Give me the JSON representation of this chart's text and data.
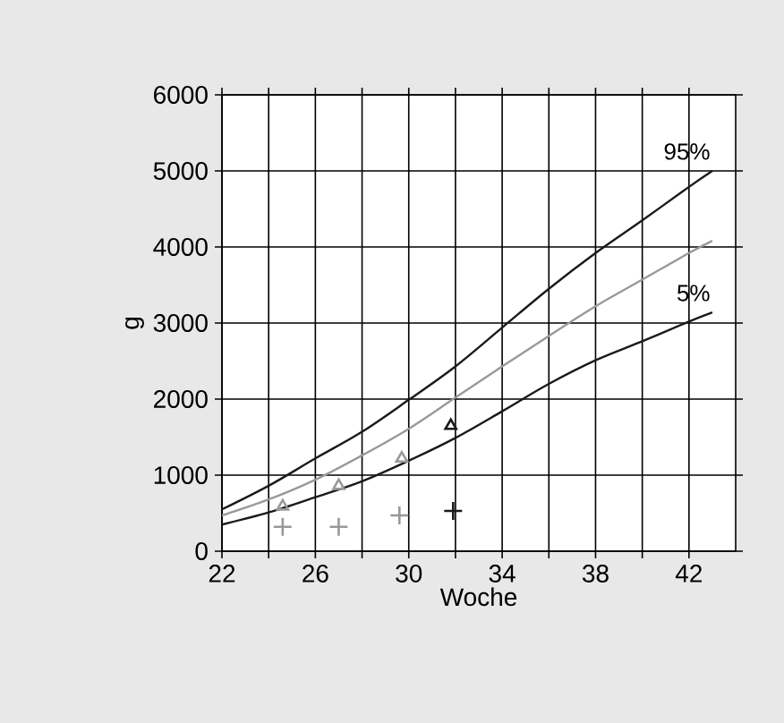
{
  "chart_data": {
    "type": "line",
    "xlabel": "Woche",
    "ylabel": "g",
    "xlim": [
      22,
      44
    ],
    "ylim": [
      0,
      6000
    ],
    "xticks": [
      22,
      {
        "value": 24,
        "label": null
      },
      26,
      {
        "value": 28,
        "label": null
      },
      30,
      {
        "value": 32,
        "label": null
      },
      34,
      {
        "value": 36,
        "label": null
      },
      38,
      {
        "value": 40,
        "label": null
      },
      42
    ],
    "yticks": [
      0,
      1000,
      2000,
      3000,
      4000,
      5000,
      6000
    ],
    "grid": true,
    "series": [
      {
        "name": "95%",
        "color": "#1a1a1a",
        "x": [
          22,
          24,
          26,
          28,
          30,
          32,
          34,
          36,
          38,
          40,
          42,
          43
        ],
        "values": [
          550,
          860,
          1220,
          1570,
          1990,
          2430,
          2940,
          3450,
          3920,
          4350,
          4790,
          5000
        ]
      },
      {
        "color": "#999999",
        "x": [
          22,
          24,
          26,
          28,
          30,
          32,
          34,
          36,
          38,
          40,
          42,
          43
        ],
        "values": [
          470,
          680,
          940,
          1260,
          1610,
          2020,
          2430,
          2830,
          3220,
          3570,
          3920,
          4080
        ]
      },
      {
        "name": "5%",
        "color": "#1a1a1a",
        "x": [
          22,
          24,
          26,
          28,
          30,
          32,
          34,
          36,
          38,
          40,
          42,
          43
        ],
        "values": [
          350,
          510,
          710,
          920,
          1190,
          1490,
          1840,
          2200,
          2510,
          2760,
          3020,
          3140
        ]
      },
      {
        "type": "scatter",
        "marker": "triangle",
        "color": "#999999",
        "x": [
          24.6,
          27,
          29.7
        ],
        "values": [
          590,
          860,
          1220
        ]
      },
      {
        "type": "scatter",
        "marker": "triangle",
        "color": "#1a1a1a",
        "x": [
          31.8
        ],
        "values": [
          1650
        ]
      },
      {
        "type": "scatter",
        "marker": "cross",
        "color": "#999999",
        "x": [
          24.6,
          27,
          29.6
        ],
        "values": [
          320,
          320,
          470
        ]
      },
      {
        "type": "scatter",
        "marker": "cross",
        "color": "#1a1a1a",
        "x": [
          31.9
        ],
        "values": [
          530
        ]
      }
    ]
  }
}
